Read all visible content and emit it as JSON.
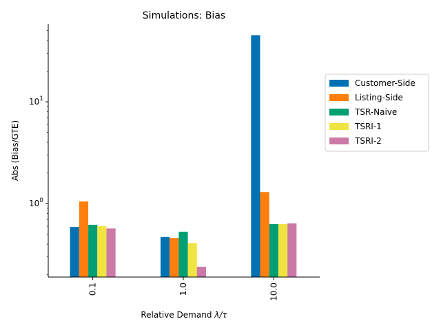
{
  "chart_data": {
    "type": "bar",
    "title": "Simulations: Bias",
    "xlabel_prefix": "Relative Demand ",
    "xlabel_math": "λ/τ",
    "ylabel": "Abs (Bias/GTE)",
    "yscale": "log",
    "ylim": [
      0.19,
      58
    ],
    "categories": [
      "0.1",
      "1.0",
      "10.0"
    ],
    "y_ticks": [
      {
        "value": 1,
        "base": "10",
        "exp": "0"
      },
      {
        "value": 10,
        "base": "10",
        "exp": "1"
      }
    ],
    "series": [
      {
        "name": "Customer-Side",
        "color": "#0072b2",
        "values": [
          0.59,
          0.47,
          45
        ]
      },
      {
        "name": "Listing-Side",
        "color": "#ff7f0e",
        "values": [
          1.05,
          0.46,
          1.3
        ]
      },
      {
        "name": "TSR-Naive",
        "color": "#009e73",
        "values": [
          0.62,
          0.53,
          0.63
        ]
      },
      {
        "name": "TSRI-1",
        "color": "#f0e442",
        "values": [
          0.6,
          0.41,
          0.63
        ]
      },
      {
        "name": "TSRI-2",
        "color": "#cc79a7",
        "values": [
          0.57,
          0.24,
          0.64
        ]
      }
    ],
    "grid": false,
    "legend_position": "right, outside plot"
  }
}
